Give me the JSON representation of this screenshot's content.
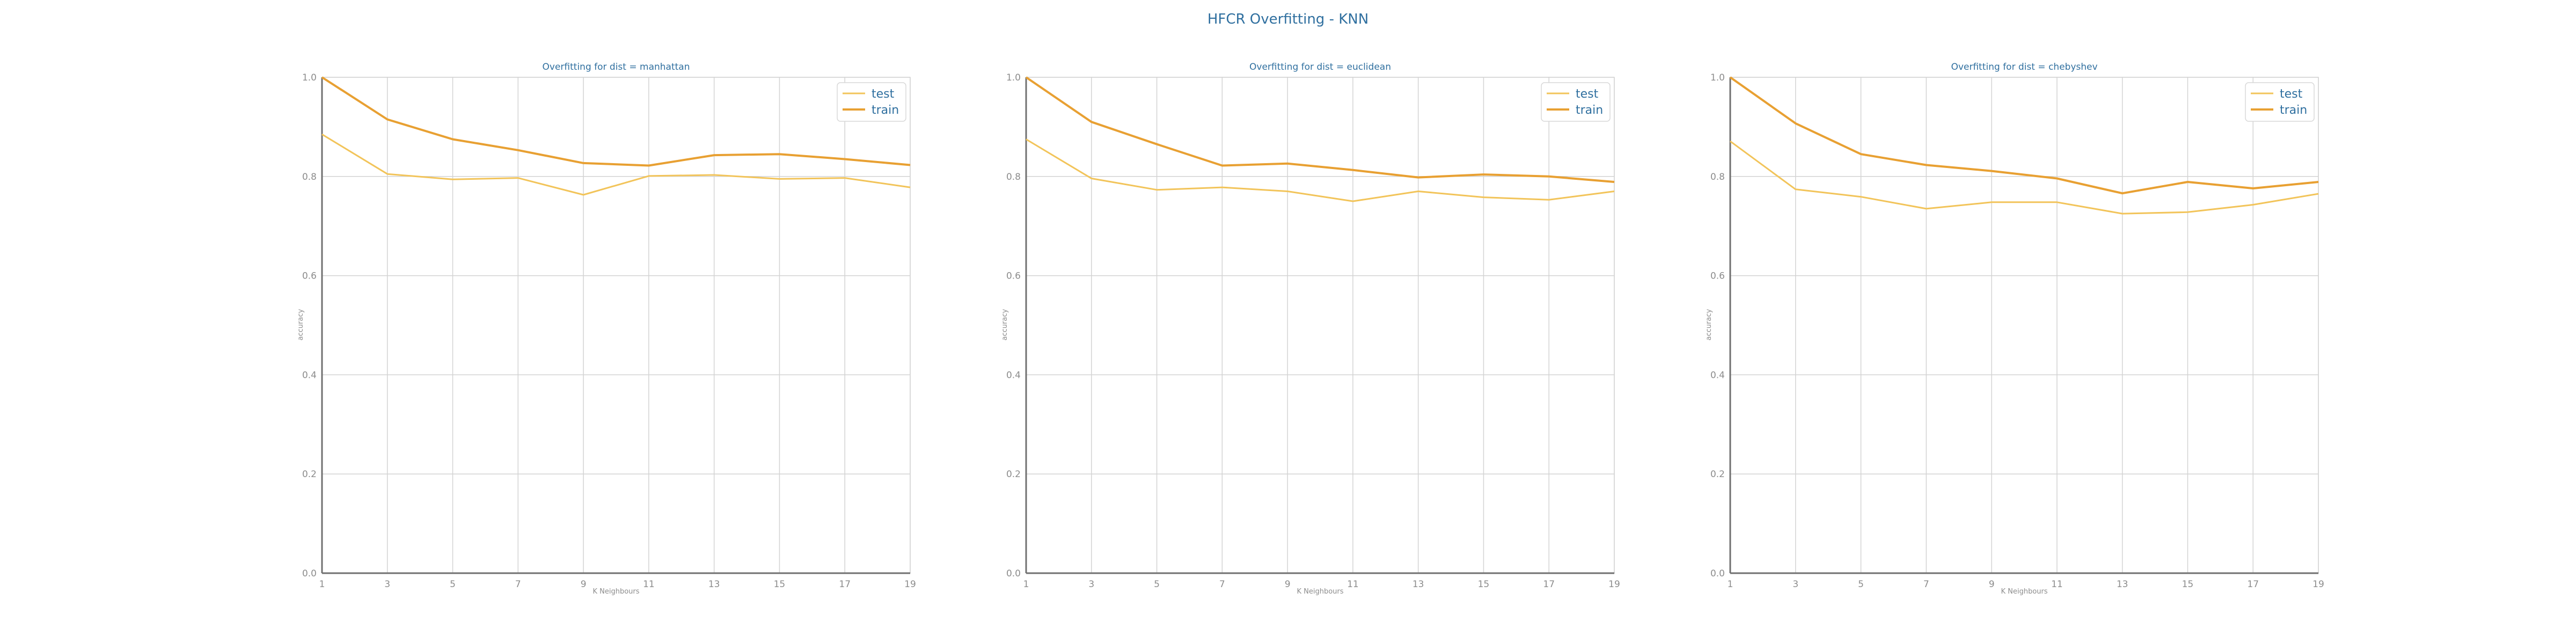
{
  "figure": {
    "title": "HFCR Overfitting - KNN"
  },
  "chart_data": [
    {
      "type": "line",
      "title": "Overfitting for dist = manhattan",
      "xlabel": "K Neighbours",
      "ylabel": "accuracy",
      "x": [
        1,
        3,
        5,
        7,
        9,
        11,
        13,
        15,
        17,
        19
      ],
      "xticks": [
        "1",
        "3",
        "5",
        "7",
        "9",
        "11",
        "13",
        "15",
        "17",
        "19"
      ],
      "yticks": [
        "0.0",
        "0.2",
        "0.4",
        "0.6",
        "0.8",
        "1.0"
      ],
      "ylim": [
        0,
        1
      ],
      "grid": true,
      "legend_position": "top-right",
      "series": [
        {
          "name": "test",
          "color": "#f2c45a",
          "values": [
            0.885,
            0.805,
            0.794,
            0.797,
            0.763,
            0.801,
            0.803,
            0.795,
            0.797,
            0.778
          ]
        },
        {
          "name": "train",
          "color": "#e8a032",
          "values": [
            1.0,
            0.915,
            0.875,
            0.853,
            0.827,
            0.822,
            0.843,
            0.845,
            0.835,
            0.823
          ]
        }
      ]
    },
    {
      "type": "line",
      "title": "Overfitting for dist = euclidean",
      "xlabel": "K Neighbours",
      "ylabel": "accuracy",
      "x": [
        1,
        3,
        5,
        7,
        9,
        11,
        13,
        15,
        17,
        19
      ],
      "xticks": [
        "1",
        "3",
        "5",
        "7",
        "9",
        "11",
        "13",
        "15",
        "17",
        "19"
      ],
      "yticks": [
        "0.0",
        "0.2",
        "0.4",
        "0.6",
        "0.8",
        "1.0"
      ],
      "ylim": [
        0,
        1
      ],
      "grid": true,
      "legend_position": "top-right",
      "series": [
        {
          "name": "test",
          "color": "#f2c45a",
          "values": [
            0.875,
            0.796,
            0.773,
            0.778,
            0.77,
            0.75,
            0.77,
            0.758,
            0.753,
            0.77
          ]
        },
        {
          "name": "train",
          "color": "#e8a032",
          "values": [
            1.0,
            0.91,
            0.865,
            0.822,
            0.826,
            0.813,
            0.798,
            0.804,
            0.8,
            0.789
          ]
        }
      ]
    },
    {
      "type": "line",
      "title": "Overfitting for dist = chebyshev",
      "xlabel": "K Neighbours",
      "ylabel": "accuracy",
      "x": [
        1,
        3,
        5,
        7,
        9,
        11,
        13,
        15,
        17,
        19
      ],
      "xticks": [
        "1",
        "3",
        "5",
        "7",
        "9",
        "11",
        "13",
        "15",
        "17",
        "19"
      ],
      "yticks": [
        "0.0",
        "0.2",
        "0.4",
        "0.6",
        "0.8",
        "1.0"
      ],
      "ylim": [
        0,
        1
      ],
      "grid": true,
      "legend_position": "top-right",
      "series": [
        {
          "name": "test",
          "color": "#f2c45a",
          "values": [
            0.871,
            0.774,
            0.759,
            0.735,
            0.748,
            0.748,
            0.725,
            0.728,
            0.743,
            0.765
          ]
        },
        {
          "name": "train",
          "color": "#e8a032",
          "values": [
            1.0,
            0.907,
            0.845,
            0.823,
            0.811,
            0.796,
            0.766,
            0.789,
            0.776,
            0.789
          ]
        }
      ]
    }
  ]
}
